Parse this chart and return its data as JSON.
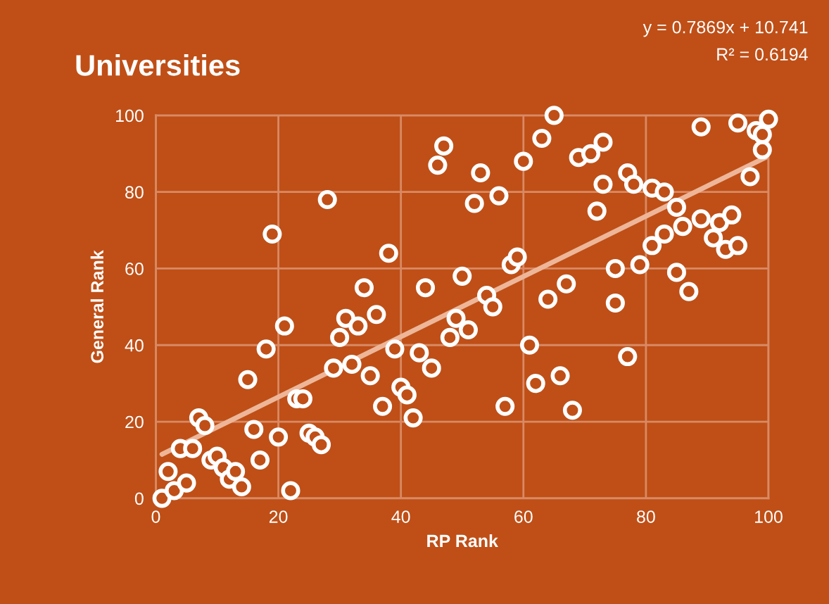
{
  "chart_data": {
    "type": "scatter",
    "title": "Universities",
    "xlabel": "RP Rank",
    "ylabel": "General Rank",
    "annotations": [
      "y = 0.7869x + 10.741",
      "R² = 0.6194"
    ],
    "xlim": [
      0,
      100
    ],
    "xticks": [
      0,
      20,
      40,
      60,
      80,
      100
    ],
    "ylim": [
      0,
      100
    ],
    "yticks": [
      0,
      20,
      40,
      60,
      80,
      100
    ],
    "grid": true,
    "marker": "circle",
    "legend": false,
    "series": [
      {
        "color": "#ffffff",
        "x": [
          1,
          2,
          3,
          4,
          5,
          6,
          7,
          8,
          9,
          10,
          11,
          12,
          13,
          14,
          15,
          16,
          17,
          18,
          19,
          20,
          21,
          22,
          23,
          24,
          25,
          26,
          27,
          28,
          29,
          30,
          31,
          32,
          33,
          34,
          35,
          36,
          37,
          38,
          39,
          40,
          41,
          42,
          43,
          44,
          45,
          46,
          47,
          48,
          49,
          50,
          51,
          52,
          53,
          54,
          55,
          56,
          57,
          58,
          59,
          60,
          61,
          62,
          63,
          64,
          65,
          66,
          67,
          68,
          69,
          71,
          72,
          73,
          73,
          75,
          75,
          77,
          77,
          78,
          79,
          81,
          81,
          83,
          83,
          85,
          85,
          86,
          87,
          89,
          89,
          91,
          92,
          93,
          94,
          95,
          95,
          97,
          98,
          99,
          99,
          100
        ],
        "values": [
          0,
          7,
          2,
          13,
          4,
          13,
          21,
          19,
          10,
          11,
          8,
          5,
          7,
          3,
          31,
          18,
          10,
          39,
          69,
          16,
          45,
          2,
          26,
          26,
          17,
          16,
          14,
          78,
          34,
          42,
          47,
          35,
          45,
          55,
          32,
          48,
          24,
          64,
          39,
          29,
          27,
          21,
          38,
          55,
          34,
          87,
          92,
          42,
          47,
          58,
          44,
          77,
          85,
          53,
          50,
          79,
          24,
          61,
          63,
          88,
          40,
          30,
          94,
          52,
          100,
          32,
          56,
          23,
          89,
          90,
          75,
          82,
          93,
          60,
          51,
          37,
          85,
          82,
          61,
          81,
          66,
          80,
          69,
          76,
          59,
          71,
          54,
          73,
          97,
          68,
          72,
          65,
          74,
          66,
          98,
          84,
          96,
          95,
          91,
          99
        ]
      },
      {
        "type": "line",
        "color": "#eeb699",
        "x": [
          1,
          100
        ],
        "values": [
          11.5,
          89.4
        ],
        "line_style": "solid",
        "marker": "none"
      }
    ]
  }
}
